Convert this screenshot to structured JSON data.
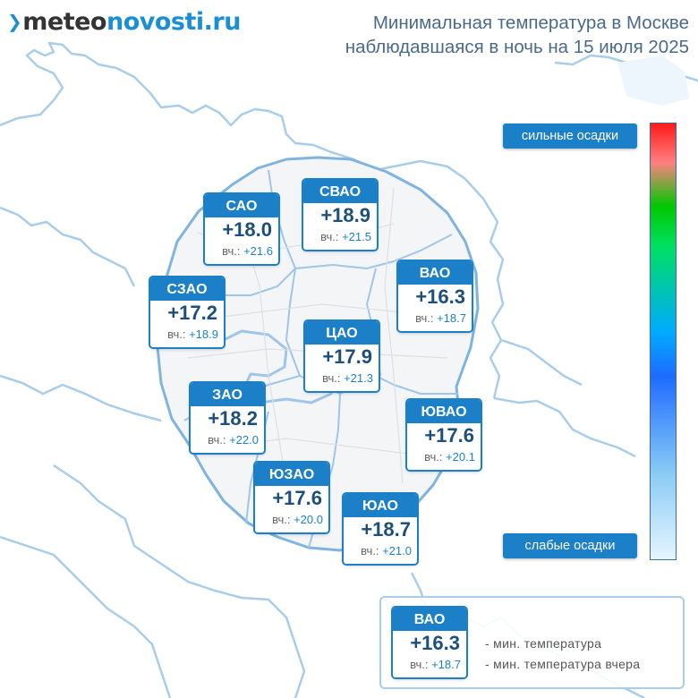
{
  "logo": {
    "part1": "meteo",
    "part2": "novosti.ru"
  },
  "title": {
    "line1": "Минимальная температура в Москве",
    "line2": "наблюдавшаяся в ночь на 15 июля 2025"
  },
  "yesterday_label": "вч.:",
  "districts": [
    {
      "name": "САО",
      "temp": "+18.0",
      "yesterday": "+21.6"
    },
    {
      "name": "СВАО",
      "temp": "+18.9",
      "yesterday": "+21.5"
    },
    {
      "name": "ВАО",
      "temp": "+16.3",
      "yesterday": "+18.7"
    },
    {
      "name": "СЗАО",
      "temp": "+17.2",
      "yesterday": "+18.9"
    },
    {
      "name": "ЦАО",
      "temp": "+17.9",
      "yesterday": "+21.3"
    },
    {
      "name": "ЗАО",
      "temp": "+18.2",
      "yesterday": "+22.0"
    },
    {
      "name": "ЮВАО",
      "temp": "+17.6",
      "yesterday": "+20.1"
    },
    {
      "name": "ЮЗАО",
      "temp": "+17.6",
      "yesterday": "+20.0"
    },
    {
      "name": "ЮАО",
      "temp": "+18.7",
      "yesterday": "+21.0"
    }
  ],
  "scale": {
    "top_label": "сильные осадки",
    "bottom_label": "слабые осадки"
  },
  "legend": {
    "example": {
      "name": "ВАО",
      "temp": "+16.3",
      "yesterday": "+18.7"
    },
    "min_temp": "- мин. температура",
    "min_temp_yesterday": "- мин. температура вчера"
  },
  "colors": {
    "accent": "#1b80c8",
    "map_line": "#7fb4e0",
    "map_fill": "#f6f7f9"
  }
}
